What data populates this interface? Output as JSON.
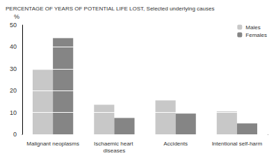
{
  "chart_data": {
    "type": "bar",
    "title": "PERCENTAGE OF YEARS OF POTENTIAL LIFE LOST, Selected underlying causes",
    "y_label": "%",
    "categories": [
      "Malignant neoplasms",
      "Ischaemic heart diseases",
      "Accidents",
      "Intentional self-harm"
    ],
    "series": [
      {
        "name": "Males",
        "color": "#c8c8c8",
        "values": [
          29.5,
          13.5,
          15.5,
          10.5
        ]
      },
      {
        "name": "Females",
        "color": "#858585",
        "values": [
          44,
          7.5,
          9.5,
          5
        ]
      }
    ],
    "ylim": [
      0,
      50
    ],
    "yticks": [
      0,
      10,
      20,
      30,
      40,
      50
    ],
    "grid": true,
    "legend": "top-right"
  }
}
